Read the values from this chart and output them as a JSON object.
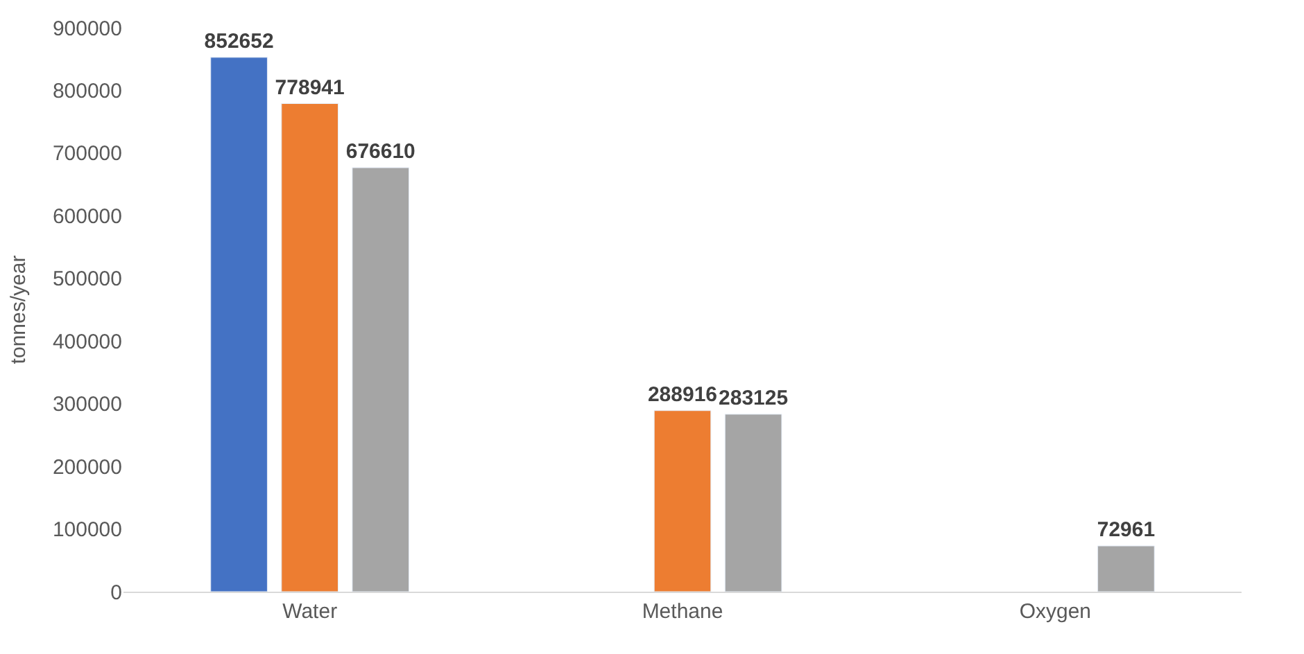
{
  "chart_data": {
    "type": "bar",
    "ylabel": "tonnes/year",
    "categories": [
      "Water",
      "Methane",
      "Oxygen"
    ],
    "series": [
      {
        "color": "#4472c4",
        "values": [
          852652,
          null,
          null
        ]
      },
      {
        "color": "#ed7d31",
        "values": [
          778941,
          288916,
          null
        ]
      },
      {
        "color": "#a5a5a5",
        "values": [
          676610,
          283125,
          72961
        ]
      }
    ],
    "ylim": [
      0,
      900000
    ],
    "yticks": [
      0,
      100000,
      200000,
      300000,
      400000,
      500000,
      600000,
      700000,
      800000,
      900000
    ],
    "data_labels": true,
    "grid": false
  }
}
